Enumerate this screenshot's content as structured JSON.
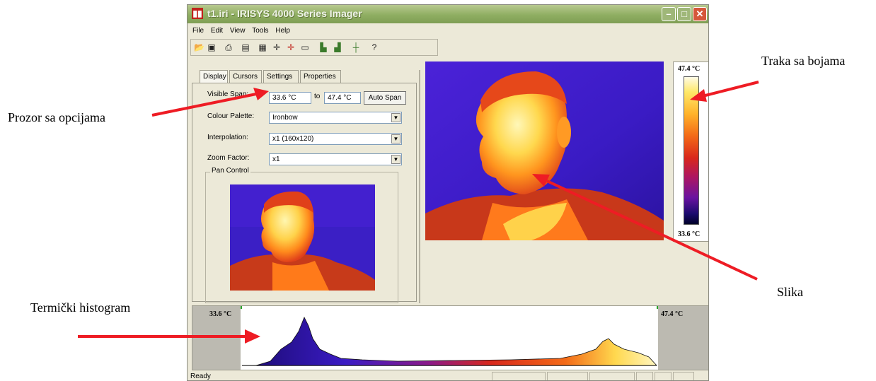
{
  "annotations": {
    "options": "Prozor sa opcijama",
    "histogram": "Termički histogram",
    "colorbar": "Traka sa bojama",
    "image": "Slika"
  },
  "window": {
    "title": "t1.iri - IRISYS 4000 Series Imager",
    "icon_glyph": "▮▮",
    "min_glyph": "–",
    "max_glyph": "□",
    "close_glyph": "✕"
  },
  "menu": [
    "File",
    "Edit",
    "View",
    "Tools",
    "Help"
  ],
  "toolbar_icons": [
    "open-icon",
    "save-icon",
    "print-icon",
    "properties-icon",
    "export-icon",
    "cursor-icon",
    "cursor-add-icon",
    "rectangle-icon",
    "bar-chart-icon",
    "bar-chart-2-icon",
    "histogram-cursor-icon",
    "help-icon"
  ],
  "tabs": [
    "Display",
    "Cursors",
    "Settings",
    "Properties"
  ],
  "display": {
    "visible_span_label": "Visible Span:",
    "span_from": "33.6 °C",
    "span_to_label": "to",
    "span_to": "47.4 °C",
    "auto_span_label": "Auto Span",
    "palette_label": "Colour Palette:",
    "palette_value": "Ironbow",
    "interpolation_label": "Interpolation:",
    "interpolation_value": "x1 (160x120)",
    "zoom_label": "Zoom Factor:",
    "zoom_value": "x1",
    "pan_label": "Pan Control"
  },
  "colorbar": {
    "max": "47.4 °C",
    "min": "33.6 °C"
  },
  "histogram": {
    "min": "33.6 °C",
    "max": "47.4 °C"
  },
  "status": "Ready",
  "colors": {
    "arrow": "#ee1c24",
    "window_bg": "#ece9d8"
  }
}
